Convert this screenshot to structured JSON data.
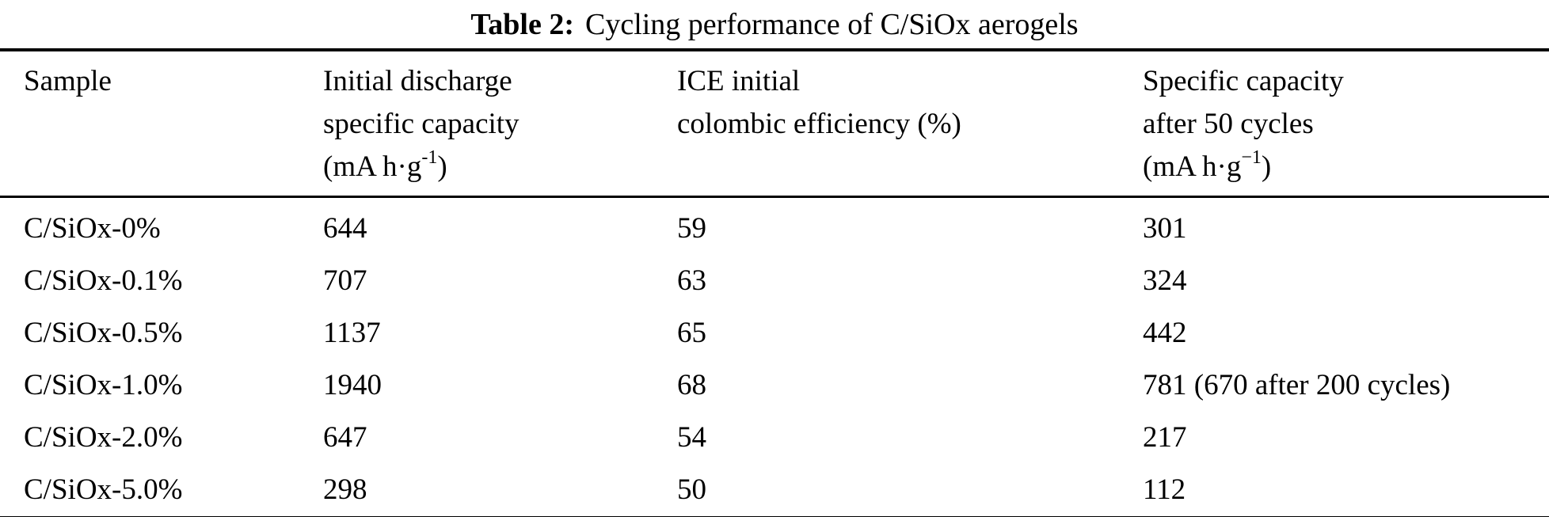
{
  "caption": {
    "label": "Table 2:",
    "text": "Cycling performance of C/SiOx aerogels"
  },
  "colors": {
    "background": "#ffffff",
    "text": "#000000",
    "rule": "#000000"
  },
  "table": {
    "columns": [
      {
        "line1": "Sample"
      },
      {
        "line1": "Initial discharge",
        "line2": "specific capacity",
        "unit_open": "(mA h·g",
        "unit_sup": "-1",
        "unit_close": ")"
      },
      {
        "line1": "ICE initial",
        "line2": "colombic efficiency (%)"
      },
      {
        "line1": "Specific capacity",
        "line2": "after 50 cycles",
        "unit_open": "(mA h·g",
        "unit_sup": "−1",
        "unit_close": ")"
      }
    ],
    "rows": [
      {
        "sample": "C/SiOx-0%",
        "initial_discharge": "644",
        "ice": "59",
        "capacity_after_50": "301"
      },
      {
        "sample": "C/SiOx-0.1%",
        "initial_discharge": "707",
        "ice": "63",
        "capacity_after_50": "324"
      },
      {
        "sample": "C/SiOx-0.5%",
        "initial_discharge": "1137",
        "ice": "65",
        "capacity_after_50": "442"
      },
      {
        "sample": "C/SiOx-1.0%",
        "initial_discharge": "1940",
        "ice": "68",
        "capacity_after_50": "781 (670 after 200 cycles)"
      },
      {
        "sample": "C/SiOx-2.0%",
        "initial_discharge": "647",
        "ice": "54",
        "capacity_after_50": "217"
      },
      {
        "sample": "C/SiOx-5.0%",
        "initial_discharge": "298",
        "ice": "50",
        "capacity_after_50": "112"
      }
    ]
  },
  "chart_data": {
    "type": "table",
    "title": "Table 2: Cycling performance of C/SiOx aerogels",
    "columns": [
      "Sample",
      "Initial discharge specific capacity (mA h·g-1)",
      "ICE initial colombic efficiency (%)",
      "Specific capacity after 50 cycles (mA h·g-1)"
    ],
    "rows": [
      [
        "C/SiOx-0%",
        644,
        59,
        "301"
      ],
      [
        "C/SiOx-0.1%",
        707,
        63,
        "324"
      ],
      [
        "C/SiOx-0.5%",
        1137,
        65,
        "442"
      ],
      [
        "C/SiOx-1.0%",
        1940,
        68,
        "781 (670 after 200 cycles)"
      ],
      [
        "C/SiOx-2.0%",
        647,
        54,
        "217"
      ],
      [
        "C/SiOx-5.0%",
        298,
        50,
        "112"
      ]
    ]
  }
}
